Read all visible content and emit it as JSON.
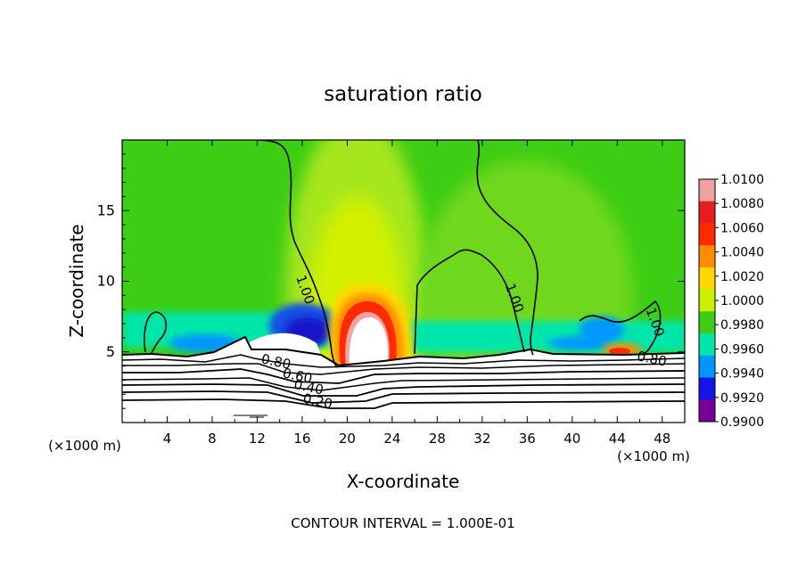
{
  "chart_data": {
    "type": "heatmap",
    "title": "saturation ratio",
    "xlabel": "X-coordinate",
    "ylabel": "Z-coordinate",
    "x_units": "(×1000 m)",
    "y_units": "(×1000 m)",
    "xlim": [
      0,
      50
    ],
    "ylim": [
      0,
      20
    ],
    "x_ticks": [
      4,
      8,
      12,
      16,
      20,
      24,
      28,
      32,
      36,
      40,
      44,
      48
    ],
    "y_ticks": [
      5,
      10,
      15
    ],
    "footer": "CONTOUR INTERVAL = 1.000E-01",
    "colorbar": {
      "labels": [
        "1.0100",
        "1.0080",
        "1.0060",
        "1.0040",
        "1.0020",
        "1.0000",
        "0.9980",
        "0.9960",
        "0.9940",
        "0.9920",
        "0.9900"
      ],
      "colors": [
        "#f0a0a0",
        "#e61e1e",
        "#ff2a00",
        "#ff8c00",
        "#ffd700",
        "#c8f000",
        "#3ccd14",
        "#00e6aa",
        "#0096ff",
        "#1414e6",
        "#780096"
      ]
    },
    "contour_labels": [
      {
        "text": "1.00",
        "x": 15.9,
        "z": 9.3
      },
      {
        "text": "1.00",
        "x": 34.5,
        "z": 8.7
      },
      {
        "text": "1.00",
        "x": 47.0,
        "z": 7.0
      },
      {
        "text": "0.80",
        "x": 13.6,
        "z": 4.0
      },
      {
        "text": "0.60",
        "x": 15.5,
        "z": 3.0
      },
      {
        "text": "0.40",
        "x": 16.5,
        "z": 2.2
      },
      {
        "text": "0.20",
        "x": 17.3,
        "z": 1.2
      },
      {
        "text": "0.80",
        "x": 47.0,
        "z": 4.2
      }
    ]
  }
}
